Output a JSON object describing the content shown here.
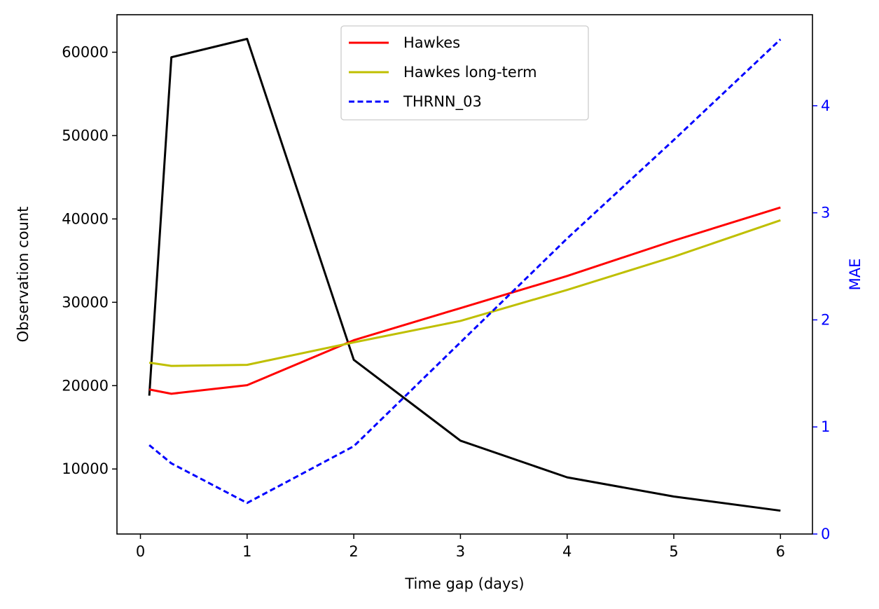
{
  "chart_data": {
    "type": "line",
    "xlabel": "Time gap (days)",
    "ylabel_left": "Observation count",
    "ylabel_right": "MAE",
    "xlim": [
      -0.22,
      6.3
    ],
    "ylim_left": [
      2200,
      64500
    ],
    "ylim_right": [
      0,
      4.85
    ],
    "x_ticks": [
      0,
      1,
      2,
      3,
      4,
      5,
      6
    ],
    "y_ticks_left": [
      10000,
      20000,
      30000,
      40000,
      50000,
      60000
    ],
    "y_ticks_right": [
      0,
      1,
      2,
      3,
      4
    ],
    "grid": false,
    "legend_position": "top-center",
    "observation_count": {
      "color": "#000000",
      "axis": "left",
      "x": [
        0.083,
        0.29,
        1,
        2,
        3,
        4,
        5,
        6
      ],
      "y": [
        18800,
        59400,
        61600,
        23100,
        13400,
        9000,
        6700,
        5000
      ]
    },
    "series": [
      {
        "name": "Hawkes",
        "color": "#ff0000",
        "style": "solid",
        "axis": "right",
        "x": [
          0.083,
          0.29,
          1,
          2,
          3,
          4,
          5,
          6
        ],
        "y": [
          1.35,
          1.31,
          1.39,
          1.81,
          2.11,
          2.41,
          2.74,
          3.05
        ]
      },
      {
        "name": "Hawkes long-term",
        "color": "#bfbf00",
        "style": "solid",
        "axis": "right",
        "x": [
          0.083,
          0.29,
          1,
          2,
          3,
          4,
          5,
          6
        ],
        "y": [
          1.6,
          1.57,
          1.58,
          1.79,
          1.99,
          2.28,
          2.59,
          2.93
        ]
      },
      {
        "name": "THRNN_03",
        "color": "#0000ff",
        "style": "dashed",
        "axis": "right",
        "x": [
          0.083,
          0.29,
          1,
          2,
          3,
          4,
          5,
          6
        ],
        "y": [
          0.83,
          0.66,
          0.29,
          0.82,
          1.79,
          2.76,
          3.68,
          4.62
        ]
      }
    ]
  }
}
